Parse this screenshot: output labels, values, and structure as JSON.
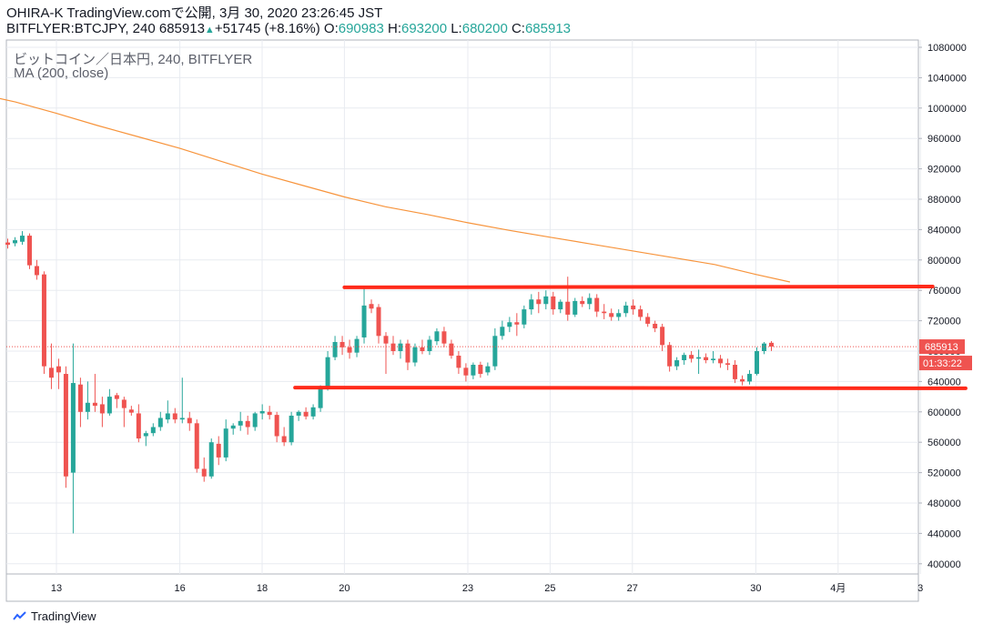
{
  "header": {
    "line1": "OHIRA-K TradingView.comで公開, 3月 30, 2020 23:26:45 JST",
    "symbol": "BITFLYER:BTCJPY, 240",
    "last": "685913",
    "change": "+51745 (+8.16%)",
    "o_label": "O:",
    "o_value": "690983",
    "h_label": "H:",
    "h_value": "693200",
    "l_label": "L:",
    "l_value": "680200",
    "c_label": "C:",
    "c_value": "685913"
  },
  "legend": {
    "title": "ビットコイン／日本円, 240, BITFLYER",
    "indicator": "MA (200, close)"
  },
  "price_tag": {
    "value": "685913",
    "countdown": "01:33:22"
  },
  "footer": {
    "brand": "TradingView"
  },
  "colors": {
    "up": "#26a69a",
    "down": "#ef5350",
    "ma": "#f7943c",
    "trendline": "#ff2a1a",
    "grid": "#e8ebf0",
    "priceline": "#ef5350"
  },
  "chart_data": {
    "type": "candlestick",
    "y_ticks": [
      1080000,
      1040000,
      1000000,
      960000,
      920000,
      880000,
      840000,
      800000,
      760000,
      720000,
      680000,
      640000,
      600000,
      560000,
      520000,
      480000,
      440000,
      400000
    ],
    "ylim": [
      380000,
      1100000
    ],
    "x_ticks": [
      {
        "label": "13",
        "t": 13
      },
      {
        "label": "16",
        "t": 16
      },
      {
        "label": "18",
        "t": 18
      },
      {
        "label": "20",
        "t": 20
      },
      {
        "label": "23",
        "t": 23
      },
      {
        "label": "25",
        "t": 25
      },
      {
        "label": "27",
        "t": 27
      },
      {
        "label": "30",
        "t": 30
      },
      {
        "label": "4月",
        "t": 32
      },
      {
        "label": "3",
        "t": 34
      }
    ],
    "last_price": 685913,
    "ma200": [
      {
        "t": 11.0,
        "v": 1020000
      },
      {
        "t": 12.0,
        "v": 1008000
      },
      {
        "t": 13.0,
        "v": 993000
      },
      {
        "t": 14.0,
        "v": 977000
      },
      {
        "t": 15.0,
        "v": 962000
      },
      {
        "t": 16.0,
        "v": 947000
      },
      {
        "t": 17.0,
        "v": 930000
      },
      {
        "t": 18.0,
        "v": 913000
      },
      {
        "t": 19.0,
        "v": 898000
      },
      {
        "t": 20.0,
        "v": 883000
      },
      {
        "t": 21.0,
        "v": 870000
      },
      {
        "t": 22.0,
        "v": 860000
      },
      {
        "t": 23.0,
        "v": 849000
      },
      {
        "t": 24.0,
        "v": 839000
      },
      {
        "t": 25.0,
        "v": 830000
      },
      {
        "t": 26.0,
        "v": 821000
      },
      {
        "t": 27.0,
        "v": 812000
      },
      {
        "t": 28.0,
        "v": 803000
      },
      {
        "t": 29.0,
        "v": 794000
      },
      {
        "t": 30.0,
        "v": 781000
      },
      {
        "t": 30.83,
        "v": 771000
      }
    ],
    "trendlines": [
      {
        "t1": 20.0,
        "v1": 764000,
        "t2": 34.3,
        "v2": 765000
      },
      {
        "t1": 18.8,
        "v1": 632000,
        "t2": 35.1,
        "v2": 631000
      }
    ],
    "candles": [
      {
        "o": 823000,
        "h": 828000,
        "l": 815000,
        "c": 820000
      },
      {
        "o": 822000,
        "h": 830000,
        "l": 818000,
        "c": 826000
      },
      {
        "o": 824000,
        "h": 838000,
        "l": 820000,
        "c": 832000
      },
      {
        "o": 832000,
        "h": 835000,
        "l": 788000,
        "c": 793000
      },
      {
        "o": 792000,
        "h": 800000,
        "l": 774000,
        "c": 780000
      },
      {
        "o": 781000,
        "h": 785000,
        "l": 650000,
        "c": 660000
      },
      {
        "o": 658000,
        "h": 690000,
        "l": 630000,
        "c": 645000
      },
      {
        "o": 660000,
        "h": 670000,
        "l": 630000,
        "c": 652000
      },
      {
        "o": 650000,
        "h": 660000,
        "l": 500000,
        "c": 515000
      },
      {
        "o": 520000,
        "h": 690000,
        "l": 440000,
        "c": 638000
      },
      {
        "o": 636000,
        "h": 645000,
        "l": 580000,
        "c": 600000
      },
      {
        "o": 600000,
        "h": 640000,
        "l": 590000,
        "c": 612000
      },
      {
        "o": 612000,
        "h": 650000,
        "l": 600000,
        "c": 608000
      },
      {
        "o": 610000,
        "h": 620000,
        "l": 580000,
        "c": 598000
      },
      {
        "o": 598000,
        "h": 630000,
        "l": 595000,
        "c": 620000
      },
      {
        "o": 622000,
        "h": 625000,
        "l": 605000,
        "c": 617000
      },
      {
        "o": 616000,
        "h": 620000,
        "l": 580000,
        "c": 605000
      },
      {
        "o": 603000,
        "h": 608000,
        "l": 595000,
        "c": 599000
      },
      {
        "o": 598000,
        "h": 610000,
        "l": 560000,
        "c": 565000
      },
      {
        "o": 568000,
        "h": 575000,
        "l": 555000,
        "c": 572000
      },
      {
        "o": 572000,
        "h": 585000,
        "l": 568000,
        "c": 580000
      },
      {
        "o": 580000,
        "h": 600000,
        "l": 575000,
        "c": 592000
      },
      {
        "o": 590000,
        "h": 615000,
        "l": 585000,
        "c": 598000
      },
      {
        "o": 598000,
        "h": 605000,
        "l": 585000,
        "c": 590000
      },
      {
        "o": 590000,
        "h": 645000,
        "l": 585000,
        "c": 592000
      },
      {
        "o": 592000,
        "h": 600000,
        "l": 575000,
        "c": 585000
      },
      {
        "o": 585000,
        "h": 590000,
        "l": 520000,
        "c": 525000
      },
      {
        "o": 525000,
        "h": 540000,
        "l": 508000,
        "c": 515000
      },
      {
        "o": 515000,
        "h": 565000,
        "l": 512000,
        "c": 560000
      },
      {
        "o": 558000,
        "h": 568000,
        "l": 530000,
        "c": 540000
      },
      {
        "o": 540000,
        "h": 590000,
        "l": 535000,
        "c": 578000
      },
      {
        "o": 578000,
        "h": 585000,
        "l": 570000,
        "c": 582000
      },
      {
        "o": 582000,
        "h": 600000,
        "l": 575000,
        "c": 588000
      },
      {
        "o": 588000,
        "h": 595000,
        "l": 570000,
        "c": 580000
      },
      {
        "o": 580000,
        "h": 600000,
        "l": 575000,
        "c": 598000
      },
      {
        "o": 598000,
        "h": 610000,
        "l": 590000,
        "c": 601000
      },
      {
        "o": 600000,
        "h": 608000,
        "l": 590000,
        "c": 596000
      },
      {
        "o": 596000,
        "h": 600000,
        "l": 560000,
        "c": 568000
      },
      {
        "o": 568000,
        "h": 580000,
        "l": 555000,
        "c": 560000
      },
      {
        "o": 560000,
        "h": 600000,
        "l": 556000,
        "c": 595000
      },
      {
        "o": 595000,
        "h": 602000,
        "l": 588000,
        "c": 600000
      },
      {
        "o": 600000,
        "h": 606000,
        "l": 590000,
        "c": 594000
      },
      {
        "o": 594000,
        "h": 610000,
        "l": 590000,
        "c": 606000
      },
      {
        "o": 605000,
        "h": 635000,
        "l": 600000,
        "c": 630000
      },
      {
        "o": 630000,
        "h": 680000,
        "l": 628000,
        "c": 672000
      },
      {
        "o": 672000,
        "h": 700000,
        "l": 668000,
        "c": 692000
      },
      {
        "o": 692000,
        "h": 700000,
        "l": 675000,
        "c": 685000
      },
      {
        "o": 685000,
        "h": 695000,
        "l": 670000,
        "c": 678000
      },
      {
        "o": 678000,
        "h": 700000,
        "l": 672000,
        "c": 696000
      },
      {
        "o": 698000,
        "h": 765000,
        "l": 690000,
        "c": 740000
      },
      {
        "o": 742000,
        "h": 748000,
        "l": 730000,
        "c": 736000
      },
      {
        "o": 738000,
        "h": 742000,
        "l": 690000,
        "c": 700000
      },
      {
        "o": 700000,
        "h": 705000,
        "l": 650000,
        "c": 690000
      },
      {
        "o": 690000,
        "h": 700000,
        "l": 675000,
        "c": 680000
      },
      {
        "o": 680000,
        "h": 695000,
        "l": 670000,
        "c": 690000
      },
      {
        "o": 690000,
        "h": 695000,
        "l": 655000,
        "c": 665000
      },
      {
        "o": 665000,
        "h": 690000,
        "l": 660000,
        "c": 685000
      },
      {
        "o": 685000,
        "h": 695000,
        "l": 676000,
        "c": 680000
      },
      {
        "o": 680000,
        "h": 700000,
        "l": 675000,
        "c": 695000
      },
      {
        "o": 693000,
        "h": 710000,
        "l": 688000,
        "c": 706000
      },
      {
        "o": 706000,
        "h": 712000,
        "l": 685000,
        "c": 690000
      },
      {
        "o": 690000,
        "h": 695000,
        "l": 670000,
        "c": 674000
      },
      {
        "o": 674000,
        "h": 680000,
        "l": 650000,
        "c": 658000
      },
      {
        "o": 658000,
        "h": 664000,
        "l": 640000,
        "c": 648000
      },
      {
        "o": 648000,
        "h": 665000,
        "l": 643000,
        "c": 662000
      },
      {
        "o": 662000,
        "h": 666000,
        "l": 645000,
        "c": 650000
      },
      {
        "o": 652000,
        "h": 665000,
        "l": 648000,
        "c": 660000
      },
      {
        "o": 660000,
        "h": 710000,
        "l": 655000,
        "c": 700000
      },
      {
        "o": 700000,
        "h": 720000,
        "l": 695000,
        "c": 712000
      },
      {
        "o": 712000,
        "h": 725000,
        "l": 705000,
        "c": 718000
      },
      {
        "o": 718000,
        "h": 730000,
        "l": 700000,
        "c": 715000
      },
      {
        "o": 715000,
        "h": 740000,
        "l": 710000,
        "c": 735000
      },
      {
        "o": 735000,
        "h": 755000,
        "l": 728000,
        "c": 748000
      },
      {
        "o": 748000,
        "h": 758000,
        "l": 730000,
        "c": 742000
      },
      {
        "o": 742000,
        "h": 760000,
        "l": 735000,
        "c": 752000
      },
      {
        "o": 752000,
        "h": 758000,
        "l": 728000,
        "c": 735000
      },
      {
        "o": 735000,
        "h": 748000,
        "l": 730000,
        "c": 745000
      },
      {
        "o": 745000,
        "h": 778000,
        "l": 720000,
        "c": 728000
      },
      {
        "o": 728000,
        "h": 750000,
        "l": 725000,
        "c": 746000
      },
      {
        "o": 746000,
        "h": 752000,
        "l": 738000,
        "c": 742000
      },
      {
        "o": 742000,
        "h": 756000,
        "l": 735000,
        "c": 750000
      },
      {
        "o": 750000,
        "h": 755000,
        "l": 725000,
        "c": 732000
      },
      {
        "o": 732000,
        "h": 742000,
        "l": 722000,
        "c": 730000
      },
      {
        "o": 730000,
        "h": 736000,
        "l": 720000,
        "c": 725000
      },
      {
        "o": 725000,
        "h": 735000,
        "l": 720000,
        "c": 730000
      },
      {
        "o": 730000,
        "h": 745000,
        "l": 725000,
        "c": 740000
      },
      {
        "o": 740000,
        "h": 748000,
        "l": 728000,
        "c": 735000
      },
      {
        "o": 735000,
        "h": 740000,
        "l": 720000,
        "c": 725000
      },
      {
        "o": 725000,
        "h": 730000,
        "l": 712000,
        "c": 716000
      },
      {
        "o": 716000,
        "h": 720000,
        "l": 705000,
        "c": 710000
      },
      {
        "o": 712000,
        "h": 716000,
        "l": 680000,
        "c": 688000
      },
      {
        "o": 688000,
        "h": 692000,
        "l": 653000,
        "c": 660000
      },
      {
        "o": 660000,
        "h": 672000,
        "l": 655000,
        "c": 668000
      },
      {
        "o": 668000,
        "h": 678000,
        "l": 662000,
        "c": 675000
      },
      {
        "o": 675000,
        "h": 680000,
        "l": 665000,
        "c": 670000
      },
      {
        "o": 670000,
        "h": 682000,
        "l": 650000,
        "c": 672000
      },
      {
        "o": 672000,
        "h": 677000,
        "l": 664000,
        "c": 668000
      },
      {
        "o": 668000,
        "h": 680000,
        "l": 664000,
        "c": 670000
      },
      {
        "o": 670000,
        "h": 675000,
        "l": 658000,
        "c": 664000
      },
      {
        "o": 664000,
        "h": 670000,
        "l": 655000,
        "c": 662000
      },
      {
        "o": 662000,
        "h": 668000,
        "l": 638000,
        "c": 643000
      },
      {
        "o": 643000,
        "h": 648000,
        "l": 635000,
        "c": 640000
      },
      {
        "o": 640000,
        "h": 655000,
        "l": 636000,
        "c": 650000
      },
      {
        "o": 650000,
        "h": 685000,
        "l": 648000,
        "c": 680000
      },
      {
        "o": 680000,
        "h": 692000,
        "l": 676000,
        "c": 690000
      },
      {
        "o": 690983,
        "h": 693200,
        "l": 680200,
        "c": 685913
      }
    ]
  }
}
